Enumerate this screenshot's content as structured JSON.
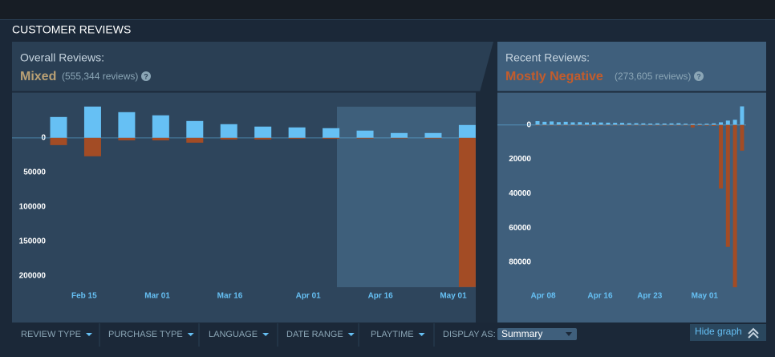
{
  "section_title": "CUSTOMER REVIEWS",
  "overall": {
    "label": "Overall Reviews:",
    "rating": "Mixed",
    "count": "(555,344 reviews)",
    "help": "?",
    "x_labels": [
      "Feb 15",
      "Mar 01",
      "Mar 16",
      "Apr 01",
      "Apr 16",
      "May 01"
    ]
  },
  "recent": {
    "label": "Recent Reviews:",
    "rating": "Mostly Negative",
    "count": "(273,605 reviews)",
    "help": "?",
    "x_labels": [
      "Apr 08",
      "Apr 16",
      "Apr 23",
      "May 01"
    ]
  },
  "filters": [
    "REVIEW TYPE",
    "PURCHASE TYPE",
    "LANGUAGE",
    "DATE RANGE",
    "PLAYTIME"
  ],
  "display_as": {
    "label": "DISPLAY AS:",
    "value": "Summary"
  },
  "hide_graph": "Hide graph",
  "chart_data": [
    {
      "type": "bar",
      "categories": [
        null,
        null,
        null,
        null,
        null,
        null,
        null,
        null,
        null,
        null,
        null,
        null,
        null
      ],
      "series": [
        {
          "color": "#66c0f4",
          "values": [
            30200,
            45300,
            37200,
            32600,
            24400,
            19800,
            16300,
            15100,
            14000,
            10500,
            7000,
            7000,
            18600
          ]
        },
        {
          "color": "#a34c25",
          "values": [
            -10500,
            -26700,
            -3500,
            -3500,
            -7000,
            -2300,
            -2300,
            -1200,
            -1200,
            -1000,
            -800,
            -1000,
            -216000
          ]
        }
      ],
      "ylim": [
        66000,
        -232500
      ],
      "yticks": [
        0,
        {
          "value": -50000,
          "label": "50000"
        },
        {
          "value": -100000,
          "label": "100000"
        },
        {
          "value": -150000,
          "label": "150000"
        },
        {
          "value": -200000,
          "label": "200000"
        }
      ]
    },
    {
      "type": "bar",
      "categories": [
        null,
        null,
        null,
        null,
        null,
        null,
        null,
        null,
        null,
        null,
        null,
        null,
        null,
        null,
        null,
        null,
        null,
        null,
        null,
        null,
        null,
        null,
        null,
        null,
        null,
        null,
        null,
        null,
        null,
        null
      ],
      "series": [
        {
          "color": "#66c0f4",
          "values": [
            2200,
            1800,
            2000,
            1600,
            1800,
            1500,
            1600,
            1400,
            1500,
            1400,
            1300,
            1200,
            1200,
            1000,
            1000,
            900,
            800,
            900,
            800,
            900,
            1000,
            700,
            600,
            600,
            700,
            900,
            1500,
            2500,
            3000,
            10800
          ]
        },
        {
          "color": "#a34c25",
          "values": [
            -300,
            -300,
            -300,
            -300,
            -300,
            -300,
            -300,
            -300,
            -300,
            -300,
            -300,
            -300,
            -300,
            -300,
            -300,
            -300,
            -300,
            -300,
            -300,
            -300,
            -300,
            -300,
            -1500,
            -400,
            -400,
            -600,
            -37000,
            -71000,
            -94500,
            -15000
          ]
        }
      ],
      "ylim": [
        19000,
        -101000
      ],
      "yticks": [
        0,
        {
          "value": -20000,
          "label": "20000"
        },
        {
          "value": -40000,
          "label": "40000"
        },
        {
          "value": -60000,
          "label": "60000"
        },
        {
          "value": -80000,
          "label": "80000"
        }
      ]
    }
  ]
}
